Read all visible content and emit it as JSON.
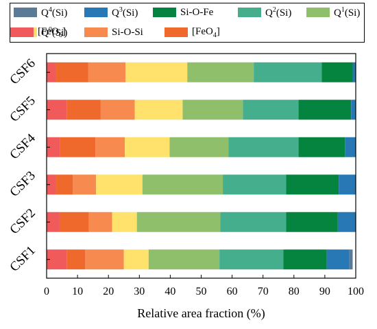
{
  "chart_data": {
    "type": "bar",
    "orientation": "horizontal",
    "stacked": true,
    "categories": [
      "CSF1",
      "CSF2",
      "CSF3",
      "CSF4",
      "CSF5",
      "CSF6"
    ],
    "xlabel": "Relative area fraction (%)",
    "ylabel": "",
    "xlim": [
      0,
      100
    ],
    "xticks": [
      0,
      10,
      20,
      30,
      40,
      50,
      60,
      70,
      80,
      90,
      100
    ],
    "legend_placement": "top",
    "grid": false,
    "stack_order": [
      "FeO6",
      "FeO4",
      "Si-O-Si",
      "Q0(Si)",
      "Q1(Si)",
      "Q2(Si)",
      "Si-O-Fe",
      "Q3(Si)",
      "Q4(Si)"
    ],
    "series": [
      {
        "key": "Q4(Si)",
        "label_base": "Q",
        "label_sup": "4",
        "label_rest": "(Si)",
        "color": "#5a7a95",
        "values": [
          1.2,
          0,
          0,
          0,
          0,
          0
        ]
      },
      {
        "key": "Q3(Si)",
        "label_base": "Q",
        "label_sup": "3",
        "label_rest": "(Si)",
        "color": "#2878b5",
        "values": [
          7.2,
          5.8,
          5.5,
          3.5,
          1.5,
          1.0
        ]
      },
      {
        "key": "Si-O-Fe",
        "label_base": "Si-O-Fe",
        "label_sup": "",
        "label_rest": "",
        "color": "#05843f",
        "values": [
          14.0,
          16.7,
          17.0,
          15.0,
          17.0,
          10.0
        ]
      },
      {
        "key": "Q2(Si)",
        "label_base": "Q",
        "label_sup": "2",
        "label_rest": "(Si)",
        "color": "#45ae8c",
        "values": [
          20.7,
          21.3,
          20.5,
          22.7,
          18.0,
          22.0
        ]
      },
      {
        "key": "Q1(Si)",
        "label_base": "Q",
        "label_sup": "1",
        "label_rest": "(Si)",
        "color": "#8fbf6b",
        "values": [
          22.9,
          27.0,
          26.0,
          19.0,
          19.5,
          21.5
        ]
      },
      {
        "key": "Q0(Si)",
        "label_base": "Q",
        "label_sup": "0",
        "label_rest": "(Si)",
        "color": "#fee26b",
        "values": [
          8.0,
          8.0,
          15.0,
          14.5,
          15.5,
          20.0
        ]
      },
      {
        "key": "Si-O-Si",
        "label_base": "Si-O-Si",
        "label_sup": "",
        "label_rest": "",
        "color": "#f78a4e",
        "values": [
          12.5,
          7.5,
          7.5,
          9.5,
          11.0,
          12.0
        ]
      },
      {
        "key": "FeO4",
        "label_base": "[FeO",
        "label_sup": "",
        "label_sub": "4",
        "label_rest": "]",
        "color": "#f0692c",
        "values": [
          6.0,
          9.5,
          5.5,
          11.5,
          11.0,
          10.5
        ]
      },
      {
        "key": "FeO6",
        "label_base": "[FeO",
        "label_sup": "",
        "label_sub": "6",
        "label_rest": "]",
        "color": "#f05a5a",
        "values": [
          6.5,
          4.2,
          3.0,
          4.3,
          6.5,
          3.0
        ]
      }
    ]
  }
}
